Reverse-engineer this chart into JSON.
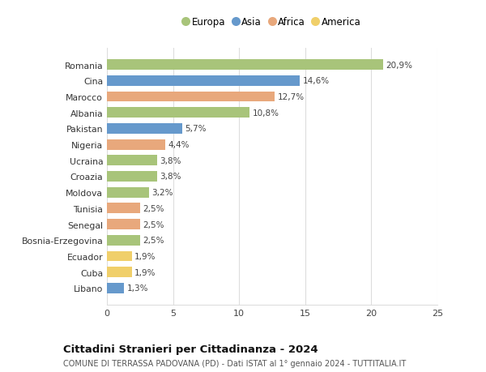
{
  "countries": [
    "Romania",
    "Cina",
    "Marocco",
    "Albania",
    "Pakistan",
    "Nigeria",
    "Ucraina",
    "Croazia",
    "Moldova",
    "Tunisia",
    "Senegal",
    "Bosnia-Erzegovina",
    "Ecuador",
    "Cuba",
    "Libano"
  ],
  "values": [
    20.9,
    14.6,
    12.7,
    10.8,
    5.7,
    4.4,
    3.8,
    3.8,
    3.2,
    2.5,
    2.5,
    2.5,
    1.9,
    1.9,
    1.3
  ],
  "labels": [
    "20,9%",
    "14,6%",
    "12,7%",
    "10,8%",
    "5,7%",
    "4,4%",
    "3,8%",
    "3,8%",
    "3,2%",
    "2,5%",
    "2,5%",
    "2,5%",
    "1,9%",
    "1,9%",
    "1,3%"
  ],
  "continents": [
    "Europa",
    "Asia",
    "Africa",
    "Europa",
    "Asia",
    "Africa",
    "Europa",
    "Europa",
    "Europa",
    "Africa",
    "Africa",
    "Europa",
    "America",
    "America",
    "Asia"
  ],
  "colors": {
    "Europa": "#a8c47a",
    "Asia": "#6699cc",
    "Africa": "#e8a87c",
    "America": "#f0cf6a"
  },
  "legend_order": [
    "Europa",
    "Asia",
    "Africa",
    "America"
  ],
  "title": "Cittadini Stranieri per Cittadinanza - 2024",
  "subtitle": "COMUNE DI TERRASSA PADOVANA (PD) - Dati ISTAT al 1° gennaio 2024 - TUTTITALIA.IT",
  "xlim": [
    0,
    25
  ],
  "xticks": [
    0,
    5,
    10,
    15,
    20,
    25
  ],
  "background_color": "#ffffff",
  "grid_color": "#dddddd"
}
